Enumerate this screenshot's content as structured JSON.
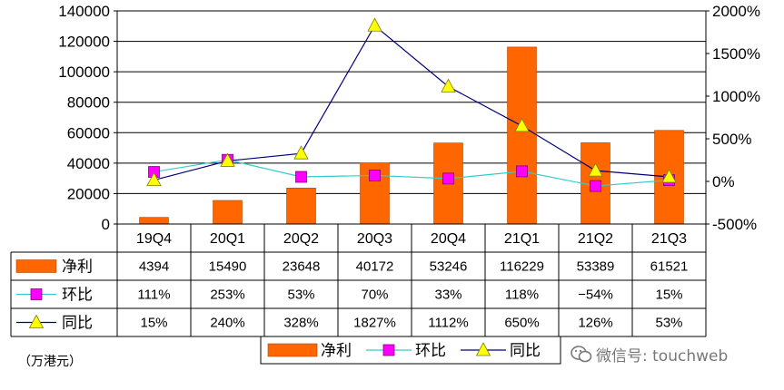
{
  "chart_data": {
    "type": "bar+line",
    "unit_label": "（万港元）",
    "categories": [
      "19Q4",
      "20Q1",
      "20Q2",
      "20Q3",
      "20Q4",
      "21Q1",
      "21Q2",
      "21Q3"
    ],
    "left_axis": {
      "ylim": [
        0,
        140000
      ],
      "ticks": [
        "0",
        "20000",
        "40000",
        "60000",
        "80000",
        "100000",
        "120000",
        "140000"
      ]
    },
    "right_axis": {
      "ylim": [
        -500,
        2000
      ],
      "ticks": [
        "-500%",
        "0%",
        "500%",
        "1000%",
        "1500%",
        "2000%"
      ]
    },
    "series": [
      {
        "name": "净利",
        "kind": "bar",
        "color": "#ff6600",
        "values": [
          4394,
          15490,
          23648,
          40172,
          53246,
          116229,
          53389,
          61521
        ],
        "labels": [
          "4394",
          "15490",
          "23648",
          "40172",
          "53246",
          "116229",
          "53389",
          "61521"
        ]
      },
      {
        "name": "环比",
        "kind": "line",
        "color": "#33cccc",
        "marker_color": "#ff00ff",
        "values": [
          111,
          253,
          53,
          70,
          33,
          118,
          -54,
          15
        ],
        "labels": [
          "111%",
          "253%",
          "53%",
          "70%",
          "33%",
          "118%",
          "−54%",
          "15%"
        ]
      },
      {
        "name": "同比",
        "kind": "line",
        "color": "#000080",
        "marker_color": "#ffff00",
        "values": [
          15,
          240,
          328,
          1827,
          1112,
          650,
          126,
          53
        ],
        "labels": [
          "15%",
          "240%",
          "328%",
          "1827%",
          "1112%",
          "650%",
          "126%",
          "53%"
        ]
      }
    ]
  },
  "watermark": {
    "text": "微信号: touchweb",
    "icon": "wechat-icon"
  }
}
